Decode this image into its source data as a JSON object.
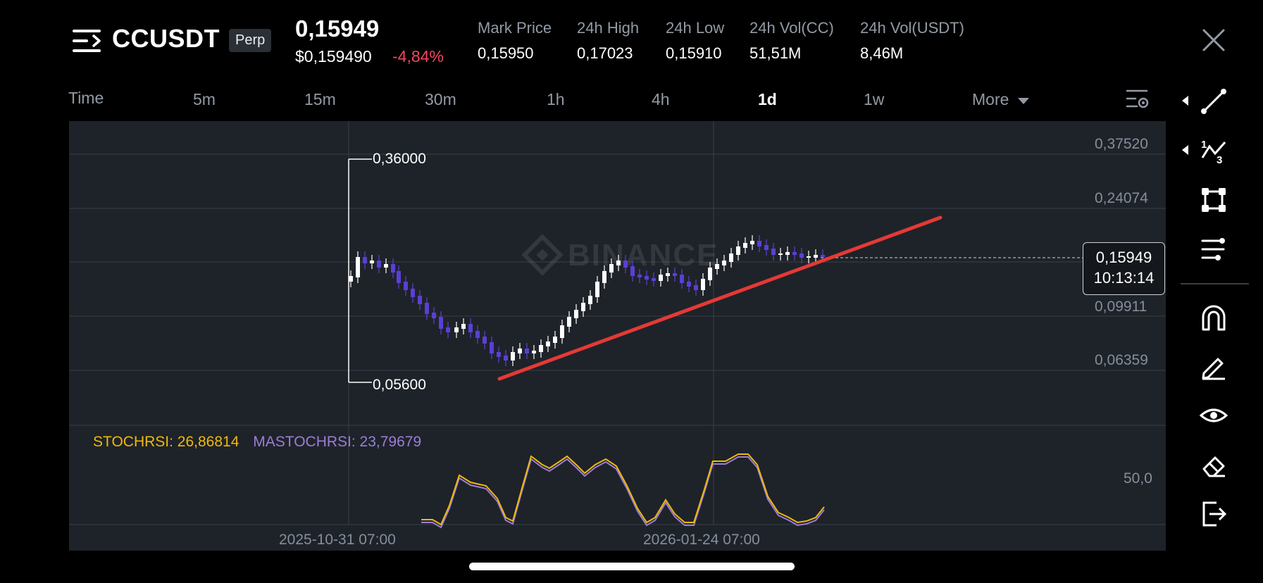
{
  "header": {
    "symbol": "CCUSDT",
    "contract_type": "Perp",
    "last_price": "0,15949",
    "usd_price": "$0,159490",
    "change_pct": "-4,84%",
    "stats": [
      {
        "label": "Mark Price",
        "value": "0,15950"
      },
      {
        "label": "24h High",
        "value": "0,17023"
      },
      {
        "label": "24h Low",
        "value": "0,15910"
      },
      {
        "label": "24h Vol(CC)",
        "value": "51,51M"
      },
      {
        "label": "24h Vol(USDT)",
        "value": "8,46M"
      }
    ]
  },
  "timeframes": {
    "time_label": "Time",
    "items": [
      "5m",
      "15m",
      "30m",
      "1h",
      "4h",
      "1d",
      "1w"
    ],
    "active": "1d",
    "more_label": "More"
  },
  "chart": {
    "watermark": "BINANCE",
    "y_ticks": [
      "0,37520",
      "0,24074",
      "0,09911",
      "0,06359"
    ],
    "high_marker": "0,36000",
    "low_marker": "0,05600",
    "current_price": "0,15949",
    "countdown": "10:13:14",
    "x_ticks": [
      "2025-10-31 07:00",
      "2026-01-24 07:00"
    ],
    "stochrsi_label": "STOCHRSI: 26,86814",
    "mastochrsi_label": "MASTOCHRSI: 23,79679",
    "osc_tick": "50,0"
  },
  "colors": {
    "up": "#ffffff",
    "down": "#5b3fd6",
    "trendline": "#e53935",
    "stochrsi": "#f0b90b",
    "mastochrsi": "#9c7dd8",
    "change_negative": "#f6465d",
    "panel": "#1e2329"
  },
  "toolbar": {
    "icons": [
      "trendline-icon",
      "fibonacci-icon",
      "shape-icon",
      "indicator-settings-icon",
      "magnet-icon",
      "pencil-icon",
      "eye-icon",
      "eraser-icon",
      "exit-icon"
    ]
  }
}
